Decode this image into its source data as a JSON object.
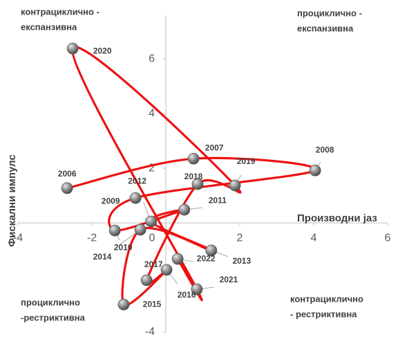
{
  "chart_data": {
    "type": "scatter",
    "x_label": "Производни јаз",
    "y_label": "Фискални импулс",
    "quadrants": [
      [
        "контрациклично -",
        "експанзивна"
      ],
      [
        "проциклично -",
        "експанзивна"
      ],
      [
        "проциклично",
        "-рестриктивна"
      ],
      [
        "контрациклично",
        "- рестриктивна"
      ]
    ],
    "xlim": [
      -4,
      6
    ],
    "ylim": [
      -4,
      7.6
    ],
    "xticks": [
      -4,
      -2,
      0,
      2,
      4,
      6
    ],
    "yticks": [
      -4,
      2,
      4,
      6
    ],
    "line_color": "#ee1111",
    "labels": [
      "2006",
      "2007",
      "2008",
      "2009",
      "2010",
      "2011",
      "2012",
      "2013",
      "2014",
      "2015",
      "2016",
      "2017",
      "2018",
      "2019",
      "2020",
      "2021",
      "2022"
    ],
    "x": [
      -2.67,
      0.75,
      4.04,
      -0.82,
      -1.38,
      0.5,
      -0.4,
      1.23,
      -0.69,
      -1.14,
      0.02,
      -0.52,
      0.86,
      1.87,
      -2.52,
      0.84,
      0.32
    ],
    "values": [
      1.27,
      2.35,
      1.92,
      0.91,
      -0.28,
      0.48,
      0.05,
      -1.01,
      -0.25,
      -2.99,
      -1.72,
      -2.1,
      1.42,
      1.37,
      6.38,
      -2.43,
      -1.32
    ]
  }
}
